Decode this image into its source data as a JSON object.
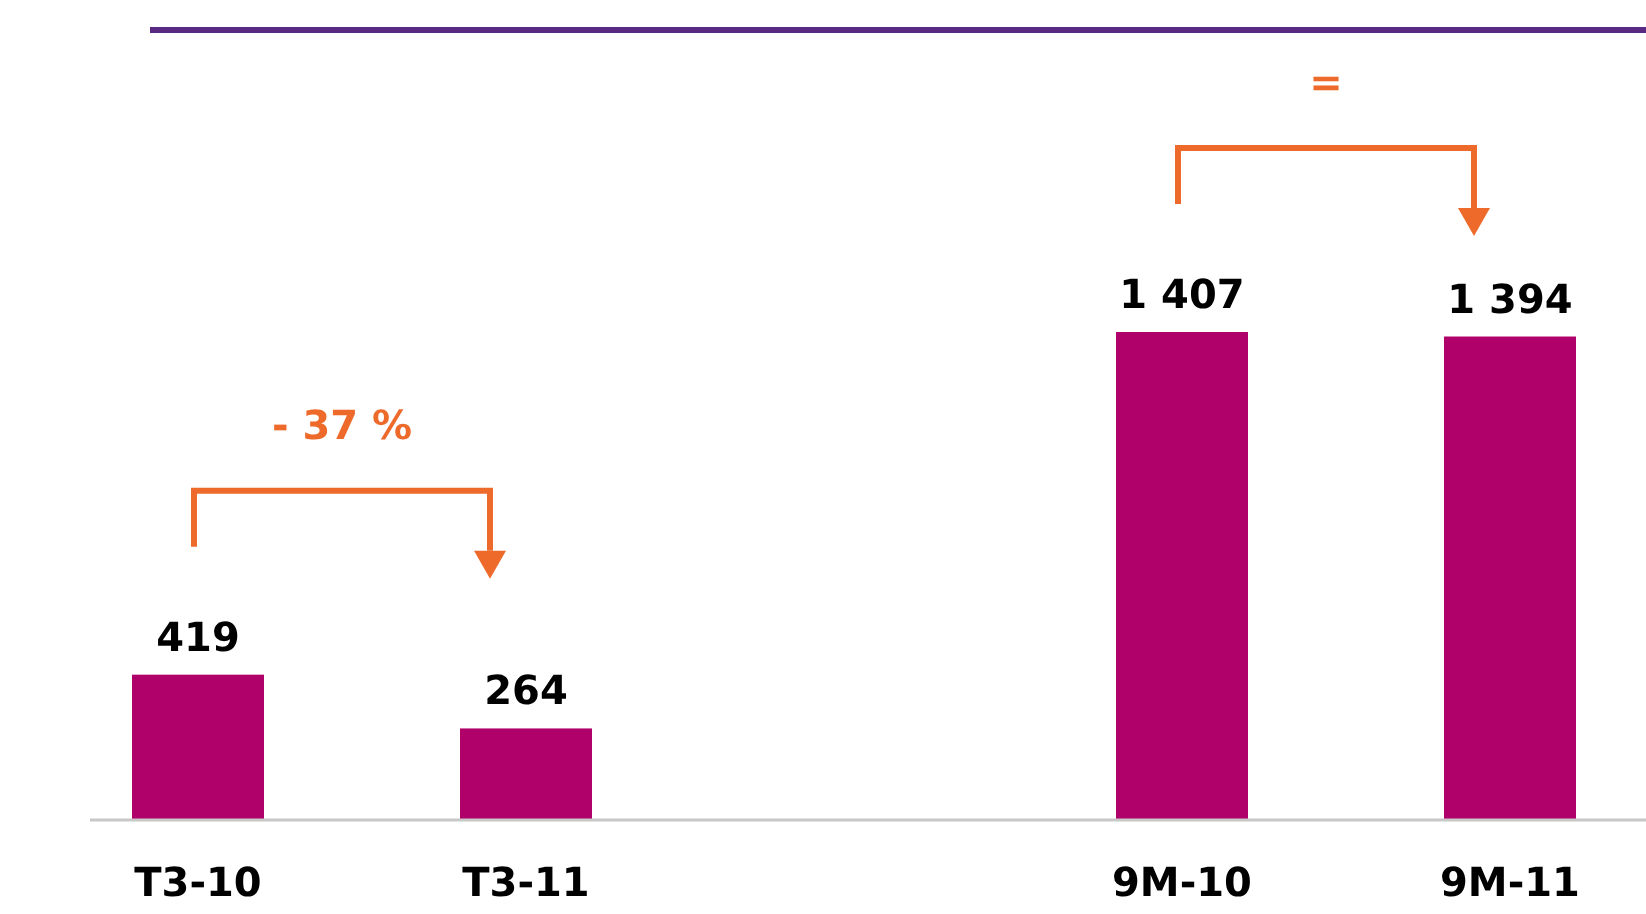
{
  "chart_data": {
    "type": "bar",
    "categories": [
      "T3-10",
      "T3-11",
      null,
      "9M-10",
      "9M-11"
    ],
    "values": [
      419,
      264,
      null,
      1407,
      1394
    ],
    "color": "#b0006a",
    "data_labels": true,
    "annotations": [
      "- 37 %",
      "="
    ]
  }
}
